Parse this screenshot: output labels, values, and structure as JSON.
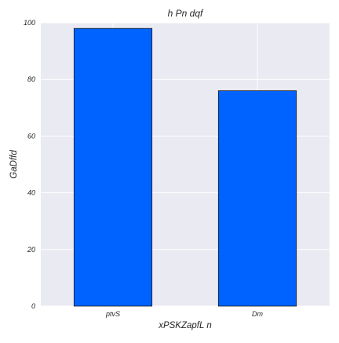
{
  "chart_data": {
    "type": "bar",
    "title": "h Pn   dqf",
    "xlabel": "xPSKZapfL  n",
    "ylabel": "GaDffd",
    "categories": [
      "ptvS",
      "Dm"
    ],
    "values": [
      98,
      76
    ],
    "ylim": [
      0,
      100
    ],
    "yticks": [
      0,
      20,
      40,
      60,
      80,
      100
    ],
    "grid": true,
    "legend": "none",
    "colors": {
      "bar": "#0062ff",
      "bar_edge": "#1a1a1a",
      "plot_background": "#eaeaf2",
      "grid": "#ffffff"
    }
  }
}
